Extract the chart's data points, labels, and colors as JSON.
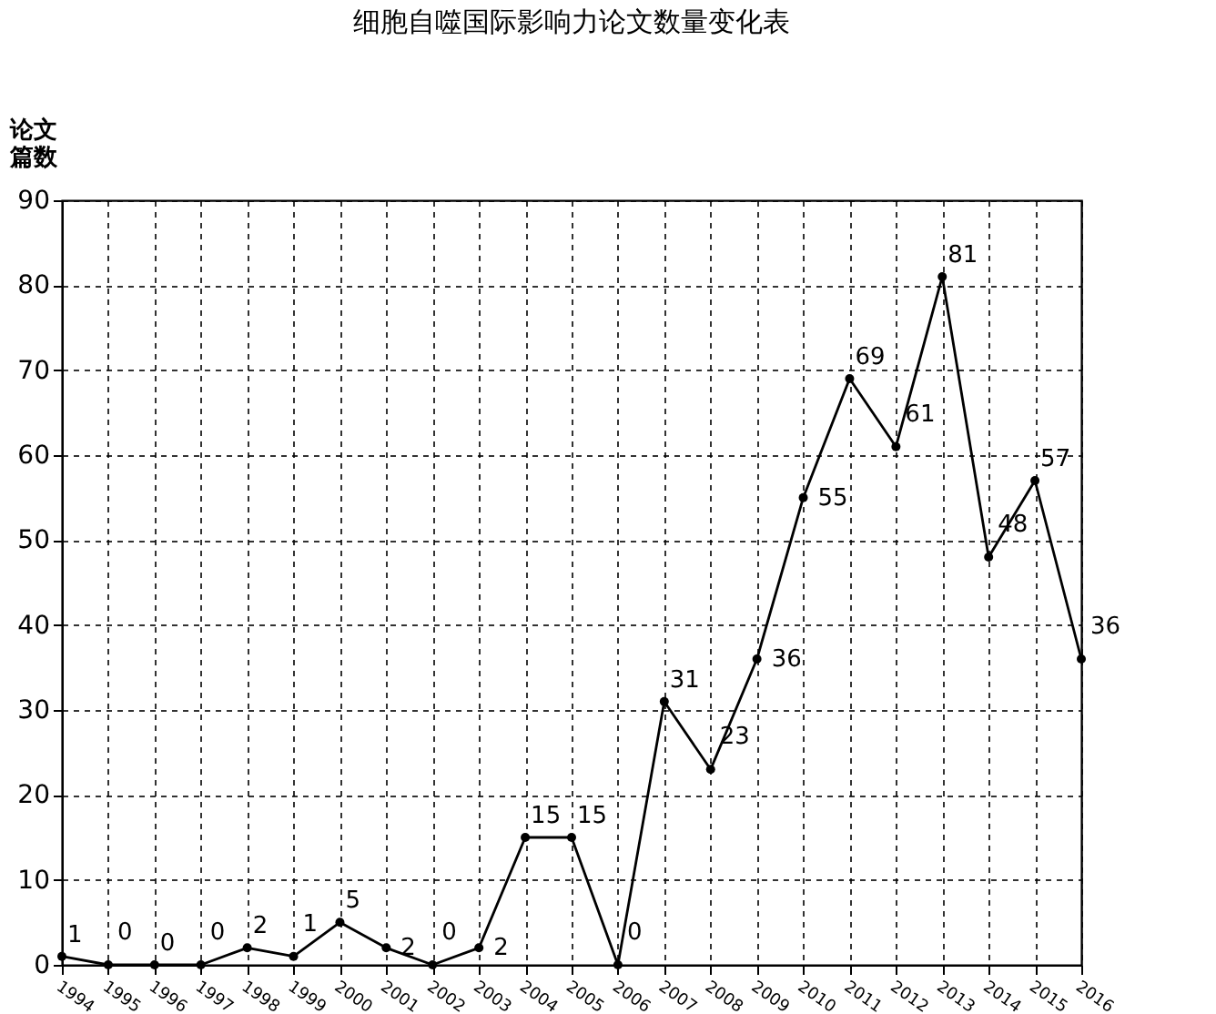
{
  "chart_data": {
    "type": "line",
    "title": "细胞自噬国际影响力论文数量变化表",
    "ylabel": "论文篇数",
    "categories": [
      "1994",
      "1995",
      "1996",
      "1997",
      "1998",
      "1999",
      "2000",
      "2001",
      "2002",
      "2003",
      "2004",
      "2005",
      "2006",
      "2007",
      "2008",
      "2009",
      "2010",
      "2011",
      "2012",
      "2013",
      "2014",
      "2015",
      "2016"
    ],
    "series": [
      {
        "color": "#000000",
        "values": [
          1,
          0,
          0,
          0,
          2,
          1,
          5,
          2,
          0,
          2,
          15,
          15,
          0,
          31,
          23,
          36,
          55,
          69,
          61,
          81,
          48,
          57,
          36
        ]
      }
    ],
    "ylim": [
      0,
      90
    ],
    "yticks": [
      0,
      10,
      20,
      30,
      40,
      50,
      60,
      70,
      80,
      90
    ],
    "grid": true,
    "marker": "circle",
    "line_style": "solid",
    "data_labels": true
  }
}
